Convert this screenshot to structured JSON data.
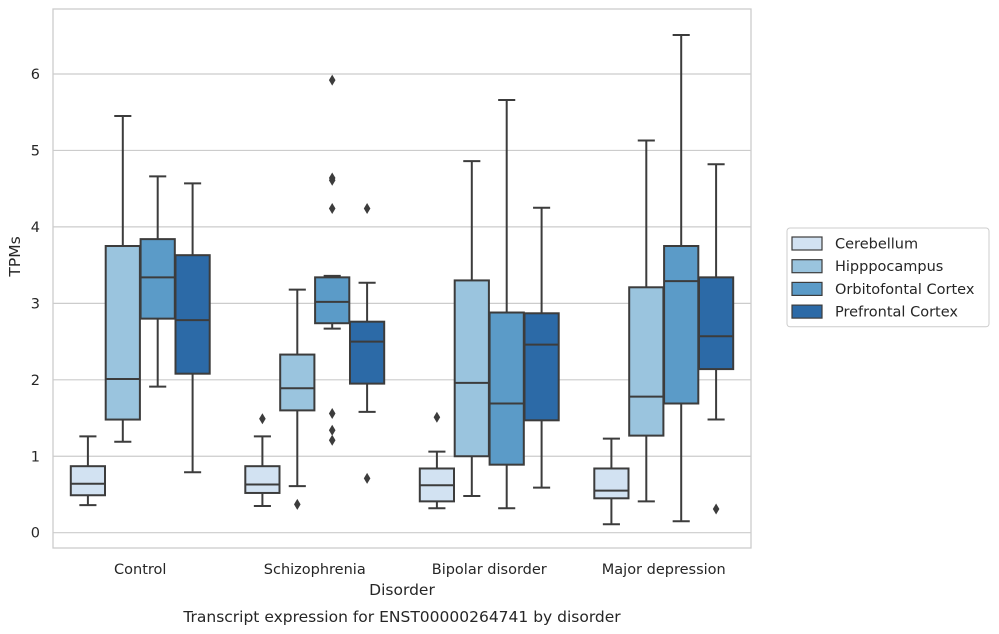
{
  "chart_data": {
    "type": "boxplot",
    "title": "Transcript expression for ENST00000264741 by disorder",
    "xlabel": "Disorder",
    "ylabel": "TPMs",
    "ylim": [
      -0.2,
      6.85
    ],
    "yticks": [
      0,
      1,
      2,
      3,
      4,
      5,
      6
    ],
    "grid": true,
    "legend_position": "right",
    "categories": [
      "Control",
      "Schizophrenia",
      "Bipolar disorder",
      "Major depression"
    ],
    "series": [
      {
        "name": "Cerebellum",
        "color": "#d2e2f2",
        "boxes": [
          {
            "whislo": 0.36,
            "q1": 0.49,
            "med": 0.64,
            "q3": 0.87,
            "whishi": 1.26,
            "fliers": []
          },
          {
            "whislo": 0.35,
            "q1": 0.52,
            "med": 0.63,
            "q3": 0.87,
            "whishi": 1.26,
            "fliers": [
              1.49
            ]
          },
          {
            "whislo": 0.32,
            "q1": 0.41,
            "med": 0.62,
            "q3": 0.84,
            "whishi": 1.06,
            "fliers": [
              1.51
            ]
          },
          {
            "whislo": 0.11,
            "q1": 0.45,
            "med": 0.55,
            "q3": 0.84,
            "whishi": 1.23,
            "fliers": []
          }
        ]
      },
      {
        "name": "Hipppocampus",
        "color": "#9ac4de",
        "boxes": [
          {
            "whislo": 1.19,
            "q1": 1.48,
            "med": 2.01,
            "q3": 3.75,
            "whishi": 5.45,
            "fliers": []
          },
          {
            "whislo": 0.61,
            "q1": 1.6,
            "med": 1.89,
            "q3": 2.33,
            "whishi": 3.18,
            "fliers": [
              0.37
            ]
          },
          {
            "whislo": 0.48,
            "q1": 1.0,
            "med": 1.96,
            "q3": 3.3,
            "whishi": 4.86,
            "fliers": []
          },
          {
            "whislo": 0.41,
            "q1": 1.27,
            "med": 1.78,
            "q3": 3.21,
            "whishi": 5.13,
            "fliers": []
          }
        ]
      },
      {
        "name": "Orbitofontal Cortex",
        "color": "#5b9bc8",
        "boxes": [
          {
            "whislo": 1.91,
            "q1": 2.8,
            "med": 3.34,
            "q3": 3.84,
            "whishi": 4.66,
            "fliers": []
          },
          {
            "whislo": 2.67,
            "q1": 2.74,
            "med": 3.02,
            "q3": 3.34,
            "whishi": 3.36,
            "fliers": [
              1.21,
              1.34,
              1.56,
              4.24,
              4.61,
              4.64,
              5.92
            ]
          },
          {
            "whislo": 0.32,
            "q1": 0.89,
            "med": 1.69,
            "q3": 2.88,
            "whishi": 5.66,
            "fliers": []
          },
          {
            "whislo": 0.15,
            "q1": 1.69,
            "med": 3.29,
            "q3": 3.75,
            "whishi": 6.51,
            "fliers": []
          }
        ]
      },
      {
        "name": "Prefrontal Cortex",
        "color": "#2c6aa7",
        "boxes": [
          {
            "whislo": 0.79,
            "q1": 2.08,
            "med": 2.78,
            "q3": 3.63,
            "whishi": 4.57,
            "fliers": []
          },
          {
            "whislo": 1.58,
            "q1": 1.95,
            "med": 2.5,
            "q3": 2.76,
            "whishi": 3.27,
            "fliers": [
              0.71,
              4.24
            ]
          },
          {
            "whislo": 0.59,
            "q1": 1.47,
            "med": 2.46,
            "q3": 2.87,
            "whishi": 4.25,
            "fliers": []
          },
          {
            "whislo": 1.48,
            "q1": 2.14,
            "med": 2.57,
            "q3": 3.34,
            "whishi": 4.82,
            "fliers": [
              0.31
            ]
          }
        ]
      }
    ]
  }
}
